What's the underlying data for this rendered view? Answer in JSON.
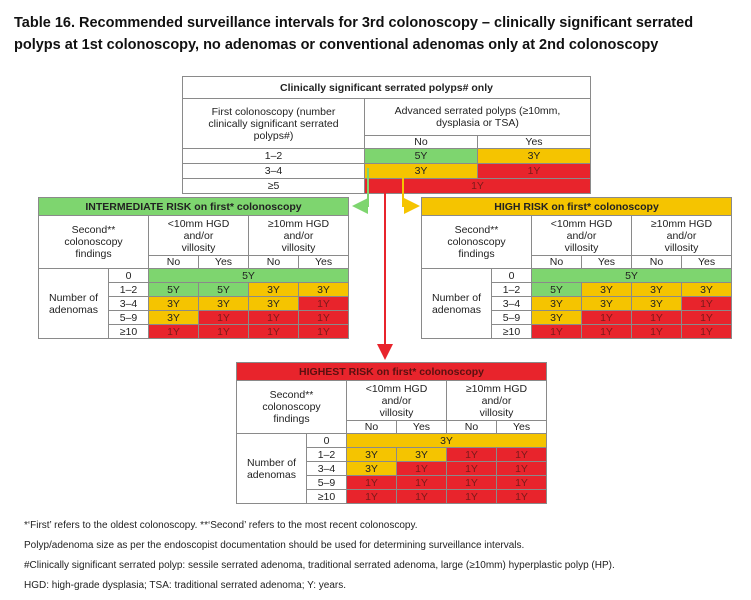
{
  "title": "Table 16. Recommended surveillance intervals for 3rd colonoscopy – clinically significant serrated polyps at 1st colonoscopy, no adenomas or conventional adenomas only at 2nd colonoscopy",
  "top_table": {
    "header": "Clinically significant serrated polyps# only",
    "left_header": "First colonoscopy (number clinically significant serrated polyps#)",
    "right_header": "Advanced serrated polyps (≥10mm, dysplasia or TSA)",
    "no": "No",
    "yes": "Yes",
    "rows": [
      {
        "label": "1–2",
        "no": "5Y",
        "yes": "3Y"
      },
      {
        "label": "3–4",
        "no": "3Y",
        "yes": "1Y"
      },
      {
        "label": "≥5",
        "merged": "1Y"
      }
    ]
  },
  "risk_tables": {
    "intermediate": {
      "header": "INTERMEDIATE RISK on first* colonoscopy",
      "zero_row": "5Y",
      "rows": [
        {
          "label": "1–2",
          "cells": [
            "5Y",
            "5Y",
            "3Y",
            "3Y"
          ]
        },
        {
          "label": "3–4",
          "cells": [
            "3Y",
            "3Y",
            "3Y",
            "1Y"
          ]
        },
        {
          "label": "5–9",
          "cells": [
            "3Y",
            "1Y",
            "1Y",
            "1Y"
          ]
        },
        {
          "label": "≥10",
          "cells": [
            "1Y",
            "1Y",
            "1Y",
            "1Y"
          ]
        }
      ]
    },
    "high": {
      "header": "HIGH RISK on first* colonoscopy",
      "zero_row": "5Y",
      "rows": [
        {
          "label": "1–2",
          "cells": [
            "5Y",
            "3Y",
            "3Y",
            "3Y"
          ]
        },
        {
          "label": "3–4",
          "cells": [
            "3Y",
            "3Y",
            "3Y",
            "1Y"
          ]
        },
        {
          "label": "5–9",
          "cells": [
            "3Y",
            "1Y",
            "1Y",
            "1Y"
          ]
        },
        {
          "label": "≥10",
          "cells": [
            "1Y",
            "1Y",
            "1Y",
            "1Y"
          ]
        }
      ]
    },
    "highest": {
      "header": "HIGHEST RISK on first* colonoscopy",
      "zero_row": "3Y",
      "rows": [
        {
          "label": "1–2",
          "cells": [
            "3Y",
            "3Y",
            "1Y",
            "1Y"
          ]
        },
        {
          "label": "3–4",
          "cells": [
            "3Y",
            "1Y",
            "1Y",
            "1Y"
          ]
        },
        {
          "label": "5–9",
          "cells": [
            "1Y",
            "1Y",
            "1Y",
            "1Y"
          ]
        },
        {
          "label": "≥10",
          "cells": [
            "1Y",
            "1Y",
            "1Y",
            "1Y"
          ]
        }
      ]
    }
  },
  "common": {
    "second_findings": "Second** colonoscopy findings",
    "lt10": "<10mm HGD and/or villosity",
    "ge10": "≥10mm HGD and/or villosity",
    "no": "No",
    "yes": "Yes",
    "number_of_adenomas": "Number of adenomas",
    "zero": "0"
  },
  "notes": [
    "*‘First’ refers to the oldest colonoscopy. **‘Second’ refers to the most recent colonoscopy.",
    "Polyp/adenoma size as per the endoscopist documentation should be used for determining surveillance intervals.",
    "#Clinically significant serrated polyp: sessile serrated adenoma, traditional serrated adenoma, large (≥10mm) hyperplastic polyp (HP).",
    "HGD: high-grade dysplasia; TSA: traditional serrated adenoma; Y: years."
  ],
  "colors": {
    "green": "#7ed56f",
    "yellow": "#f5c400",
    "red": "#e8242c"
  }
}
